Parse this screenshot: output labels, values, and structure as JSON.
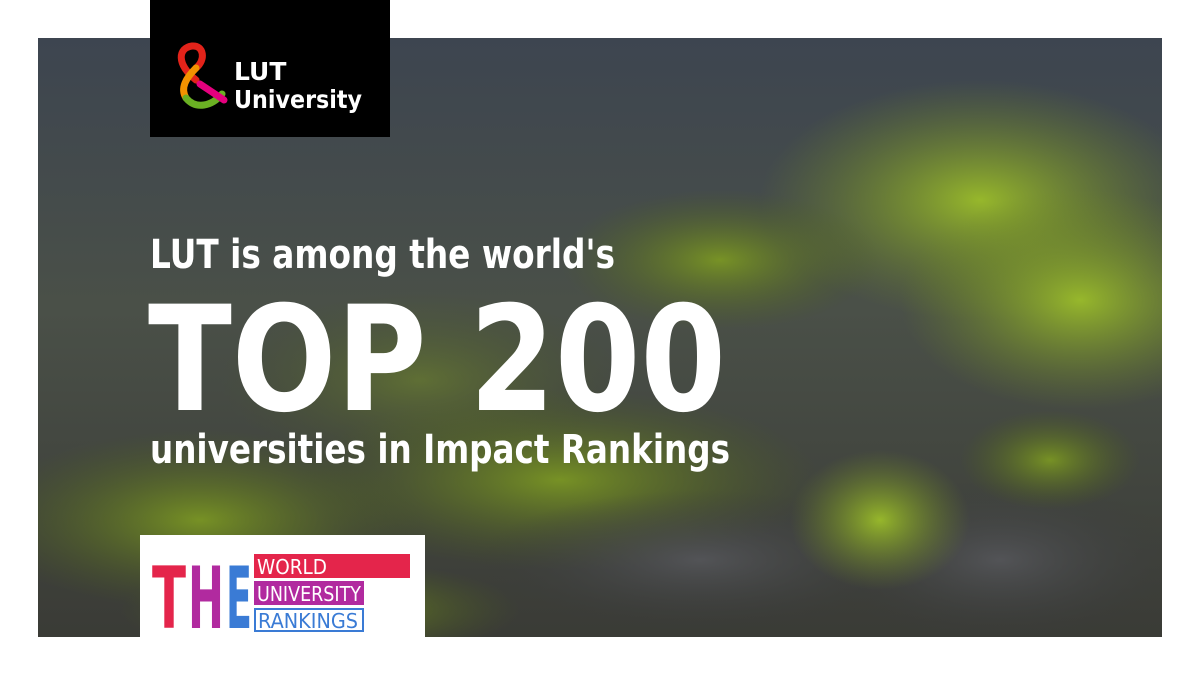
{
  "logo": {
    "line1": "LUT",
    "line2": "University"
  },
  "headline": {
    "intro": "LUT is among the world's",
    "main": "TOP 200",
    "outro": "universities in Impact Rankings"
  },
  "badge": {
    "letters": [
      "T",
      "H",
      "E"
    ],
    "lines": [
      "WORLD",
      "UNIVERSITY",
      "RANKINGS"
    ]
  }
}
